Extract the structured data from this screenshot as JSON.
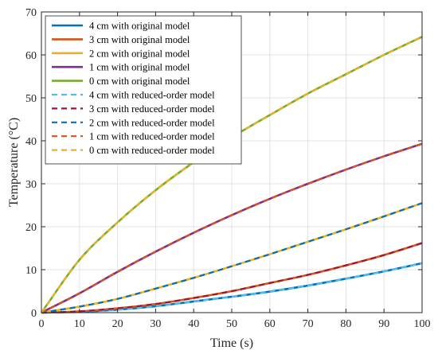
{
  "chart_data": {
    "type": "line",
    "xlabel": "Time (s)",
    "ylabel": "Temperature (°C)",
    "xlim": [
      0,
      100
    ],
    "ylim": [
      0,
      70
    ],
    "x_ticks": [
      0,
      10,
      20,
      30,
      40,
      50,
      60,
      70,
      80,
      90,
      100
    ],
    "y_ticks": [
      0,
      10,
      20,
      30,
      40,
      50,
      60,
      70
    ],
    "grid": true,
    "legend_position": "top-left",
    "x": [
      0,
      10,
      20,
      30,
      40,
      50,
      60,
      70,
      80,
      90,
      100
    ],
    "series": [
      {
        "name": "4 cm with original model",
        "style": "solid",
        "color": "#0072BD",
        "values": [
          0,
          0.2,
          0.7,
          1.5,
          2.6,
          3.7,
          4.9,
          6.3,
          7.9,
          9.6,
          11.5
        ]
      },
      {
        "name": "3 cm with original model",
        "style": "solid",
        "color": "#D95319",
        "values": [
          0,
          0.3,
          1.0,
          2.0,
          3.4,
          5.0,
          6.9,
          8.8,
          11.0,
          13.4,
          16.2
        ]
      },
      {
        "name": "2 cm with original model",
        "style": "solid",
        "color": "#EDB120",
        "values": [
          0,
          1.4,
          3.2,
          5.6,
          8.1,
          10.8,
          13.6,
          16.5,
          19.4,
          22.4,
          25.5
        ]
      },
      {
        "name": "1 cm with original model",
        "style": "solid",
        "color": "#7E2F8E",
        "values": [
          0,
          4.5,
          9.5,
          14.2,
          18.6,
          22.7,
          26.5,
          30.0,
          33.3,
          36.4,
          39.3
        ]
      },
      {
        "name": "0 cm with original model",
        "style": "solid",
        "color": "#77AC30",
        "values": [
          0,
          12.3,
          21.0,
          28.5,
          35.0,
          40.8,
          46.0,
          51.0,
          55.5,
          60.0,
          64.2
        ]
      },
      {
        "name": "4 cm with reduced-order model",
        "style": "dashed",
        "color": "#4DBEEE",
        "values": [
          0,
          0.2,
          0.7,
          1.5,
          2.6,
          3.7,
          4.9,
          6.3,
          7.9,
          9.6,
          11.5
        ]
      },
      {
        "name": "3 cm with reduced-order model",
        "style": "dashed",
        "color": "#A2142F",
        "values": [
          0,
          0.3,
          1.0,
          2.0,
          3.4,
          5.0,
          6.9,
          8.8,
          11.0,
          13.4,
          16.2
        ]
      },
      {
        "name": "2 cm with reduced-order model",
        "style": "dashed",
        "color": "#0072BD",
        "values": [
          0,
          1.4,
          3.2,
          5.6,
          8.1,
          10.8,
          13.6,
          16.5,
          19.4,
          22.4,
          25.5
        ]
      },
      {
        "name": "1 cm with reduced-order model",
        "style": "dashed",
        "color": "#D95319",
        "values": [
          0,
          4.5,
          9.5,
          14.2,
          18.6,
          22.7,
          26.5,
          30.0,
          33.3,
          36.4,
          39.3
        ]
      },
      {
        "name": "0 cm with reduced-order model",
        "style": "dashed",
        "color": "#EDB120",
        "values": [
          0,
          12.3,
          21.0,
          28.5,
          35.0,
          40.8,
          46.0,
          51.0,
          55.5,
          60.0,
          64.2
        ]
      }
    ]
  }
}
